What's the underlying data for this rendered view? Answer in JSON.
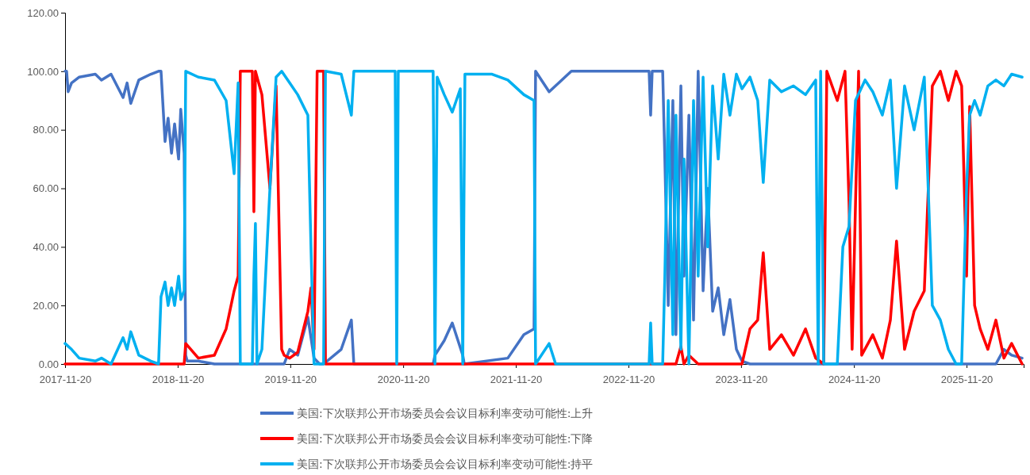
{
  "chart_data": {
    "type": "line",
    "legend": "bottom",
    "grid": false,
    "marker": "none",
    "line_style": "solid",
    "xlim": [
      "2017-11-20",
      "2026-05-24"
    ],
    "xticks": [
      "2017-11-20",
      "2018-11-20",
      "2019-11-20",
      "2020-11-20",
      "2021-11-20",
      "2022-11-20",
      "2023-11-20",
      "2024-11-20",
      "2025-11-20"
    ],
    "ylim": [
      0,
      120
    ],
    "yticks": [
      {
        "value": 0,
        "label": "0.00"
      },
      {
        "value": 20,
        "label": "20.00"
      },
      {
        "value": 40,
        "label": "40.00"
      },
      {
        "value": 60,
        "label": "60.00"
      },
      {
        "value": 80,
        "label": "80.00"
      },
      {
        "value": 100,
        "label": "100.00"
      },
      {
        "value": 120,
        "label": "120.00"
      }
    ],
    "series": [
      {
        "name": "美国:下次联邦公开市场委员会会议目标利率变动可能性:上升",
        "color": "#4472c4",
        "x": [
          "2017-11-20",
          "2017-11-25",
          "2017-11-30",
          "2017-12-11",
          "2018-01-05",
          "2018-02-26",
          "2018-03-18",
          "2018-04-18",
          "2018-05-27",
          "2018-06-09",
          "2018-06-21",
          "2018-07-17",
          "2018-08-25",
          "2018-09-19",
          "2018-09-27",
          "2018-10-10",
          "2018-10-20",
          "2018-10-31",
          "2018-11-10",
          "2018-11-23",
          "2018-11-30",
          "2018-12-11",
          "2018-12-16",
          "2018-12-21",
          "2019-01-26",
          "2019-03-19",
          "2019-06-04",
          "2019-07-30",
          "2019-10-31",
          "2019-11-18",
          "2019-12-14",
          "2020-01-16",
          "2020-02-05",
          "2020-02-23",
          "2020-03-07",
          "2020-05-03",
          "2020-06-05",
          "2020-06-13",
          "2021-02-25",
          "2021-03-03",
          "2021-04-02",
          "2021-04-28",
          "2021-06-01",
          "2021-06-06",
          "2021-10-25",
          "2021-12-16",
          "2022-01-18",
          "2022-01-23",
          "2022-03-08",
          "2022-05-19",
          "2023-01-26",
          "2023-01-31",
          "2023-02-05",
          "2023-03-11",
          "2023-03-18",
          "2023-03-29",
          "2023-04-13",
          "2023-04-23",
          "2023-05-09",
          "2023-05-19",
          "2023-06-04",
          "2023-06-19",
          "2023-07-04",
          "2023-07-20",
          "2023-08-04",
          "2023-08-20",
          "2023-09-07",
          "2023-09-25",
          "2023-10-15",
          "2023-11-05",
          "2023-11-23",
          "2023-12-19",
          "2026-02-23",
          "2026-03-21",
          "2026-04-15",
          "2026-05-19"
        ],
        "values": [
          100,
          100,
          93,
          96,
          98,
          99,
          97,
          99,
          91,
          96,
          89,
          97,
          99,
          100,
          100,
          76,
          84,
          72,
          82,
          70,
          87,
          72,
          3,
          1,
          1,
          0,
          0,
          0,
          0,
          5,
          3,
          16,
          2,
          0,
          0,
          5,
          15,
          0,
          0,
          3,
          8,
          14,
          3,
          0,
          2,
          10,
          12,
          100,
          93,
          100,
          100,
          85,
          100,
          100,
          70,
          20,
          90,
          10,
          95,
          30,
          85,
          15,
          100,
          25,
          60,
          18,
          26,
          10,
          22,
          5,
          1,
          0,
          0,
          5,
          3,
          2
        ]
      },
      {
        "name": "美国:下次联邦公开市场委员会会议目标利率变动可能性:下降",
        "color": "#ff0000",
        "x": [
          "2017-11-20",
          "2018-12-11",
          "2018-12-16",
          "2019-01-26",
          "2019-03-19",
          "2019-04-26",
          "2019-05-22",
          "2019-06-04",
          "2019-06-11",
          "2019-07-20",
          "2019-07-25",
          "2019-07-30",
          "2019-08-20",
          "2019-09-15",
          "2019-10-05",
          "2019-10-23",
          "2019-10-31",
          "2019-11-18",
          "2019-12-14",
          "2020-01-16",
          "2020-01-26",
          "2020-02-05",
          "2020-02-15",
          "2020-03-07",
          "2020-03-13",
          "2023-04-23",
          "2023-05-09",
          "2023-05-19",
          "2023-06-04",
          "2023-07-04",
          "2023-11-23",
          "2023-12-19",
          "2024-01-13",
          "2024-01-31",
          "2024-02-21",
          "2024-03-30",
          "2024-05-08",
          "2024-06-16",
          "2024-07-19",
          "2024-08-14",
          "2024-08-24",
          "2024-09-27",
          "2024-10-22",
          "2024-11-04",
          "2024-11-14",
          "2024-12-05",
          "2024-12-15",
          "2025-01-20",
          "2025-02-20",
          "2025-03-18",
          "2025-04-07",
          "2025-05-03",
          "2025-06-03",
          "2025-07-06",
          "2025-08-01",
          "2025-08-27",
          "2025-09-22",
          "2025-10-17",
          "2025-11-04",
          "2025-11-20",
          "2025-11-30",
          "2025-12-16",
          "2026-01-03",
          "2026-01-28",
          "2026-02-23",
          "2026-03-21",
          "2026-04-15",
          "2026-05-19"
        ],
        "values": [
          0,
          0,
          7,
          2,
          3,
          12,
          25,
          30,
          100,
          100,
          52,
          100,
          92,
          60,
          95,
          5,
          3,
          2,
          4,
          18,
          26,
          5,
          100,
          100,
          0,
          0,
          6,
          0,
          3,
          0,
          0,
          12,
          15,
          38,
          5,
          10,
          3,
          12,
          2,
          0,
          100,
          90,
          100,
          55,
          5,
          100,
          3,
          10,
          2,
          15,
          42,
          5,
          18,
          25,
          95,
          100,
          90,
          100,
          95,
          30,
          88,
          20,
          12,
          5,
          15,
          2,
          7,
          0
        ]
      },
      {
        "name": "美国:下次联邦公开市场委员会会议目标利率变动可能性:持平",
        "color": "#00b0f0",
        "x": [
          "2017-11-20",
          "2017-12-11",
          "2018-01-05",
          "2018-02-26",
          "2018-03-18",
          "2018-04-18",
          "2018-05-27",
          "2018-06-09",
          "2018-06-21",
          "2018-07-17",
          "2018-08-25",
          "2018-09-19",
          "2018-09-27",
          "2018-10-10",
          "2018-10-20",
          "2018-10-31",
          "2018-11-10",
          "2018-11-23",
          "2018-11-30",
          "2018-12-11",
          "2018-12-16",
          "2019-01-26",
          "2019-03-19",
          "2019-04-26",
          "2019-05-22",
          "2019-06-04",
          "2019-06-11",
          "2019-07-20",
          "2019-07-25",
          "2019-07-30",
          "2019-08-04",
          "2019-08-20",
          "2019-09-15",
          "2019-10-05",
          "2019-10-23",
          "2019-11-18",
          "2019-12-14",
          "2020-01-16",
          "2020-01-26",
          "2020-02-05",
          "2020-03-07",
          "2020-03-13",
          "2020-05-03",
          "2020-06-05",
          "2020-06-13",
          "2020-10-25",
          "2020-10-30",
          "2020-11-04",
          "2021-02-25",
          "2021-03-03",
          "2021-03-10",
          "2021-04-02",
          "2021-04-28",
          "2021-05-24",
          "2021-06-01",
          "2021-06-08",
          "2021-09-04",
          "2021-10-25",
          "2021-12-16",
          "2022-01-18",
          "2022-01-23",
          "2022-03-08",
          "2022-03-29",
          "2023-01-26",
          "2023-01-31",
          "2023-02-05",
          "2023-03-11",
          "2023-03-18",
          "2023-03-29",
          "2023-04-13",
          "2023-04-23",
          "2023-05-09",
          "2023-05-19",
          "2023-06-04",
          "2023-06-19",
          "2023-07-04",
          "2023-07-20",
          "2023-08-04",
          "2023-08-20",
          "2023-09-07",
          "2023-09-25",
          "2023-10-15",
          "2023-11-05",
          "2023-11-23",
          "2023-12-19",
          "2024-01-13",
          "2024-01-31",
          "2024-02-21",
          "2024-03-30",
          "2024-05-08",
          "2024-06-16",
          "2024-07-19",
          "2024-07-27",
          "2024-08-04",
          "2024-08-14",
          "2024-09-27",
          "2024-10-15",
          "2024-11-04",
          "2024-11-25",
          "2024-12-26",
          "2025-01-20",
          "2025-02-20",
          "2025-03-18",
          "2025-04-07",
          "2025-05-03",
          "2025-06-03",
          "2025-07-06",
          "2025-08-01",
          "2025-08-27",
          "2025-09-22",
          "2025-10-17",
          "2025-11-04",
          "2025-11-20",
          "2025-11-30",
          "2025-12-16",
          "2026-01-03",
          "2026-01-28",
          "2026-02-23",
          "2026-03-21",
          "2026-04-15",
          "2026-05-19"
        ],
        "values": [
          7,
          5,
          2,
          1,
          2,
          0,
          9,
          5,
          11,
          3,
          1,
          0,
          23,
          28,
          20,
          26,
          20,
          30,
          22,
          25,
          100,
          98,
          97,
          90,
          65,
          96,
          0,
          0,
          30,
          48,
          0,
          5,
          60,
          98,
          100,
          96,
          92,
          85,
          40,
          0,
          0,
          100,
          99,
          85,
          100,
          100,
          0,
          100,
          100,
          0,
          98,
          92,
          86,
          94,
          0,
          99,
          99,
          97,
          92,
          90,
          0,
          7,
          0,
          0,
          14,
          0,
          0,
          30,
          90,
          10,
          85,
          5,
          70,
          0,
          90,
          30,
          98,
          40,
          95,
          70,
          99,
          85,
          99,
          94,
          98,
          90,
          62,
          97,
          93,
          95,
          92,
          97,
          0,
          100,
          0,
          0,
          40,
          47,
          90,
          97,
          93,
          85,
          97,
          60,
          95,
          80,
          98,
          20,
          15,
          5,
          0,
          0,
          60,
          85,
          90,
          85,
          95,
          97,
          95,
          99,
          98
        ]
      }
    ]
  }
}
